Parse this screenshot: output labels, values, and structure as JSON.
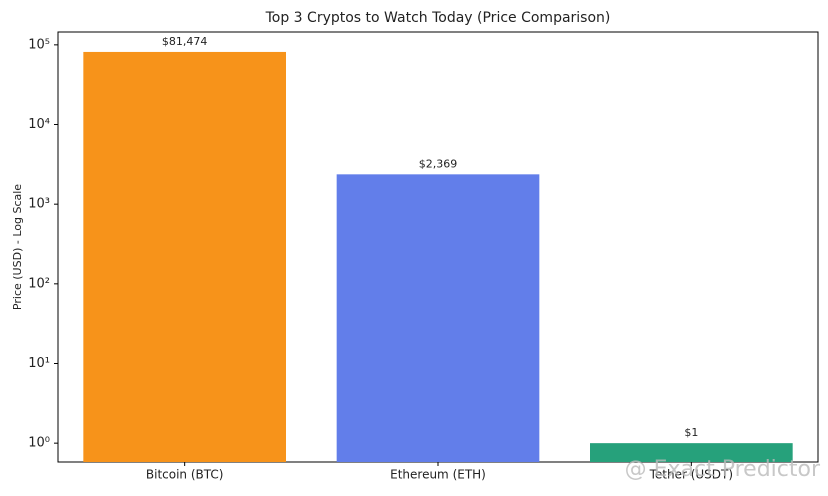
{
  "chart_data": {
    "type": "bar",
    "title": "Top 3 Cryptos to Watch Today (Price Comparison)",
    "y_label": "Price (USD) - Log Scale",
    "categories": [
      "Bitcoin (BTC)",
      "Ethereum (ETH)",
      "Tether (USDT)"
    ],
    "values": [
      81474,
      2369,
      1
    ],
    "value_labels": [
      "$81,474",
      "$2,369",
      "$1"
    ],
    "colors": [
      "#F7931A",
      "#627EEA",
      "#26A17B"
    ],
    "log_scale": true,
    "ylim": [
      0.58,
      145000
    ],
    "yticks": [
      {
        "value": 1,
        "label": "10⁰"
      },
      {
        "value": 10,
        "label": "10¹"
      },
      {
        "value": 100,
        "label": "10²"
      },
      {
        "value": 1000,
        "label": "10³"
      },
      {
        "value": 10000,
        "label": "10⁴"
      },
      {
        "value": 100000,
        "label": "10⁵"
      }
    ],
    "watermark": "@ Exact Predictor"
  }
}
